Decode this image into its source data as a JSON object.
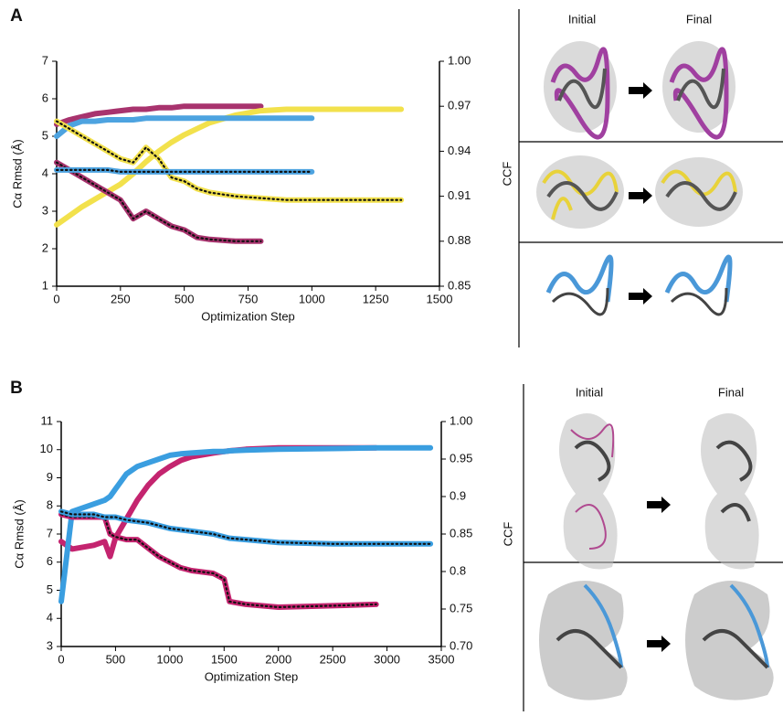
{
  "chart_data": [
    {
      "type": "line",
      "panel_label": "A",
      "xlabel": "Optimization Step",
      "ylabel": "Cα Rmsd (Å)",
      "y2label": "CCF",
      "x": [
        0,
        50,
        100,
        150,
        200,
        250,
        300,
        350,
        400,
        450,
        500,
        550,
        600,
        700,
        800,
        900,
        1000,
        1100,
        1200,
        1350
      ],
      "xlim": [
        0,
        1500
      ],
      "xticks": [
        0,
        250,
        500,
        750,
        1000,
        1250,
        1500
      ],
      "ylim": [
        1,
        7
      ],
      "yticks": [
        1,
        2,
        3,
        4,
        5,
        6,
        7
      ],
      "y2lim": [
        0.85,
        1
      ],
      "y2ticks": [
        0.85,
        0.88,
        0.91,
        0.94,
        0.97,
        {
          "value": 1,
          "label": "1.00"
        }
      ],
      "series": [
        {
          "color": "#a8336e",
          "axis": "y2",
          "dotted": false,
          "values": [
            0.958,
            0.961,
            0.963,
            0.965,
            0.966,
            0.967,
            0.968,
            0.968,
            0.969,
            0.969,
            0.97,
            0.97,
            0.97,
            0.97,
            0.97,
            null,
            null,
            null,
            null,
            null
          ]
        },
        {
          "color": "#f2e14c",
          "axis": "y2",
          "dotted": false,
          "values": [
            0.891,
            0.897,
            0.903,
            0.908,
            0.913,
            0.918,
            0.925,
            0.933,
            0.94,
            0.946,
            0.951,
            0.955,
            0.959,
            0.964,
            0.967,
            0.968,
            0.968,
            0.968,
            0.968,
            0.968
          ]
        },
        {
          "color": "#4da3e0",
          "axis": "y2",
          "dotted": false,
          "values": [
            0.95,
            0.957,
            0.96,
            0.96,
            0.961,
            0.961,
            0.961,
            0.962,
            0.962,
            0.962,
            0.962,
            0.962,
            0.962,
            0.962,
            0.962,
            0.962,
            0.962,
            null,
            null,
            null
          ]
        },
        {
          "color": "#a8336e",
          "axis": "y",
          "dotted": true,
          "values": [
            4.3,
            4.1,
            3.9,
            3.7,
            3.5,
            3.3,
            2.8,
            3.0,
            2.8,
            2.6,
            2.5,
            2.3,
            2.25,
            2.2,
            2.2,
            null,
            null,
            null,
            null,
            null
          ]
        },
        {
          "color": "#f2e14c",
          "axis": "y",
          "dotted": true,
          "values": [
            5.4,
            5.2,
            5.0,
            4.8,
            4.6,
            4.4,
            4.3,
            4.7,
            4.4,
            3.9,
            3.8,
            3.6,
            3.5,
            3.4,
            3.35,
            3.3,
            3.3,
            3.3,
            3.3,
            3.3
          ]
        },
        {
          "color": "#4da3e0",
          "axis": "y",
          "dotted": true,
          "values": [
            4.1,
            4.1,
            4.1,
            4.1,
            4.1,
            4.05,
            4.05,
            4.05,
            4.05,
            4.05,
            4.05,
            4.05,
            4.05,
            4.05,
            4.05,
            4.05,
            4.05,
            null,
            null,
            null
          ]
        }
      ]
    },
    {
      "type": "line",
      "panel_label": "B",
      "xlabel": "Optimization Step",
      "ylabel": "Cα Rmsd (Å)",
      "y2label": "CCF",
      "x": [
        0,
        100,
        300,
        400,
        450,
        500,
        600,
        700,
        800,
        900,
        1000,
        1100,
        1200,
        1400,
        1500,
        1550,
        1700,
        2000,
        2500,
        2900,
        3400
      ],
      "xlim": [
        0,
        3500
      ],
      "xticks": [
        0,
        500,
        1000,
        1500,
        2000,
        2500,
        3000,
        3500
      ],
      "ylim": [
        3,
        11
      ],
      "yticks": [
        3,
        4,
        5,
        6,
        7,
        8,
        9,
        10,
        11
      ],
      "y2lim": [
        0.7,
        1
      ],
      "y2ticks": [
        {
          "value": 0.7,
          "label": "0.70"
        },
        0.75,
        0.8,
        0.85,
        0.9,
        0.95,
        {
          "value": 1,
          "label": "1.00"
        }
      ],
      "series": [
        {
          "color": "#c4246f",
          "axis": "y2",
          "dotted": false,
          "values": [
            0.84,
            0.83,
            0.835,
            0.84,
            0.82,
            0.845,
            0.87,
            0.895,
            0.915,
            0.93,
            0.94,
            0.948,
            0.953,
            0.958,
            0.96,
            0.961,
            0.963,
            0.965,
            0.965,
            0.965,
            null
          ]
        },
        {
          "color": "#3a9ee0",
          "axis": "y2",
          "dotted": false,
          "values": [
            0.76,
            0.88,
            0.89,
            0.895,
            0.9,
            0.91,
            0.93,
            0.94,
            0.945,
            0.95,
            0.955,
            0.957,
            0.958,
            0.96,
            0.96,
            0.961,
            0.962,
            0.963,
            0.964,
            0.965,
            0.965
          ]
        },
        {
          "color": "#c4246f",
          "axis": "y",
          "dotted": true,
          "values": [
            7.7,
            7.6,
            7.6,
            7.6,
            7.0,
            6.9,
            6.8,
            6.8,
            6.5,
            6.2,
            6.0,
            5.8,
            5.7,
            5.6,
            5.4,
            4.6,
            4.5,
            4.4,
            4.45,
            4.5,
            null
          ]
        },
        {
          "color": "#3a9ee0",
          "axis": "y",
          "dotted": true,
          "values": [
            7.8,
            7.7,
            7.7,
            7.6,
            7.6,
            7.6,
            7.5,
            7.45,
            7.4,
            7.3,
            7.2,
            7.15,
            7.1,
            7.0,
            6.9,
            6.85,
            6.8,
            6.7,
            6.65,
            6.65,
            6.65
          ]
        }
      ]
    }
  ],
  "structures": {
    "a": {
      "initial": "Initial",
      "final": "Final"
    },
    "b": {
      "initial": "Initial",
      "final": "Final"
    }
  }
}
